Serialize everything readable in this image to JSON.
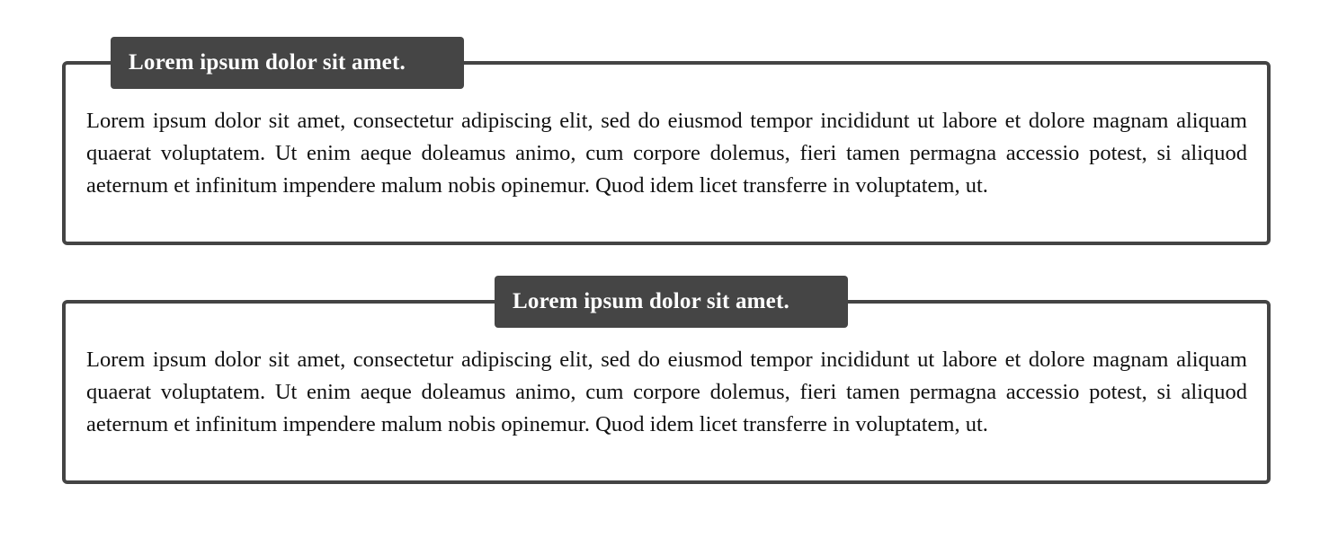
{
  "boxes": [
    {
      "title": "Lorem ipsum dolor sit amet.",
      "title_align": "left",
      "body": "Lorem ipsum dolor sit amet, consectetur adipiscing elit, sed do eiusmod tempor incididunt ut labore et dolore magnam aliquam quaerat voluptatem. Ut enim aeque doleamus animo, cum corpore dolemus, fieri tamen permagna accessio potest, si aliquod aeternum et infinitum impendere malum nobis opinemur. Quod idem licet transferre in voluptatem, ut."
    },
    {
      "title": "Lorem ipsum dolor sit amet.",
      "title_align": "center",
      "body": "Lorem ipsum dolor sit amet, consectetur adipiscing elit, sed do eiusmod tempor incididunt ut labore et dolore magnam aliquam quaerat voluptatem. Ut enim aeque doleamus animo, cum corpore dolemus, fieri tamen permagna accessio potest, si aliquod aeternum et infinitum impendere malum nobis opinemur. Quod idem licet transferre in voluptatem, ut."
    }
  ],
  "colors": {
    "frame": "#444444",
    "title_background": "#454545",
    "title_text": "#ffffff",
    "body_text": "#111111"
  }
}
